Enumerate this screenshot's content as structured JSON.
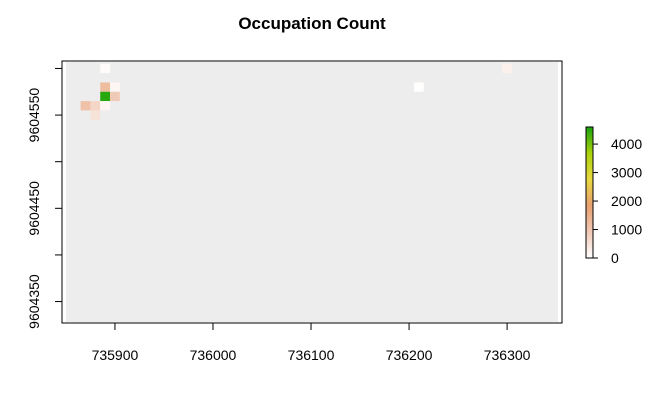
{
  "chart_data": {
    "type": "heatmap",
    "title": "Occupation Count",
    "xlabel": "",
    "ylabel": "",
    "xlim": [
      735846,
      736356
    ],
    "ylim": [
      9604327,
      9604608
    ],
    "x_ticks": [
      735900,
      736000,
      736100,
      736200,
      736300
    ],
    "y_ticks": [
      9604350,
      9604400,
      9604450,
      9604500,
      9604550,
      9604600
    ],
    "y_tick_labels": [
      "9604350",
      "",
      "9604450",
      "",
      "9604550",
      ""
    ],
    "raster_extent": {
      "xmin": 735850,
      "xmax": 736352,
      "ymin": 9604328,
      "ymax": 9604607
    },
    "cell_size": 10,
    "background_color": "#ededed",
    "cells": [
      {
        "x": 735890,
        "y": 9604600,
        "value": 60
      },
      {
        "x": 735890,
        "y": 9604580,
        "value": 1200
      },
      {
        "x": 735900,
        "y": 9604580,
        "value": 150
      },
      {
        "x": 735890,
        "y": 9604570,
        "value": 4500
      },
      {
        "x": 735900,
        "y": 9604570,
        "value": 900
      },
      {
        "x": 735870,
        "y": 9604560,
        "value": 1100
      },
      {
        "x": 735880,
        "y": 9604560,
        "value": 700
      },
      {
        "x": 735890,
        "y": 9604560,
        "value": 150
      },
      {
        "x": 735880,
        "y": 9604550,
        "value": 500
      },
      {
        "x": 736210,
        "y": 9604580,
        "value": 20
      },
      {
        "x": 736300,
        "y": 9604600,
        "value": 250
      }
    ],
    "legend": {
      "position": "right",
      "range": [
        0,
        4600
      ],
      "ticks": [
        0,
        1000,
        2000,
        3000,
        4000
      ],
      "colors": [
        "#ffffff",
        "#f0c9b5",
        "#e8a070",
        "#e8d840",
        "#aad20c",
        "#17a20e"
      ]
    }
  }
}
